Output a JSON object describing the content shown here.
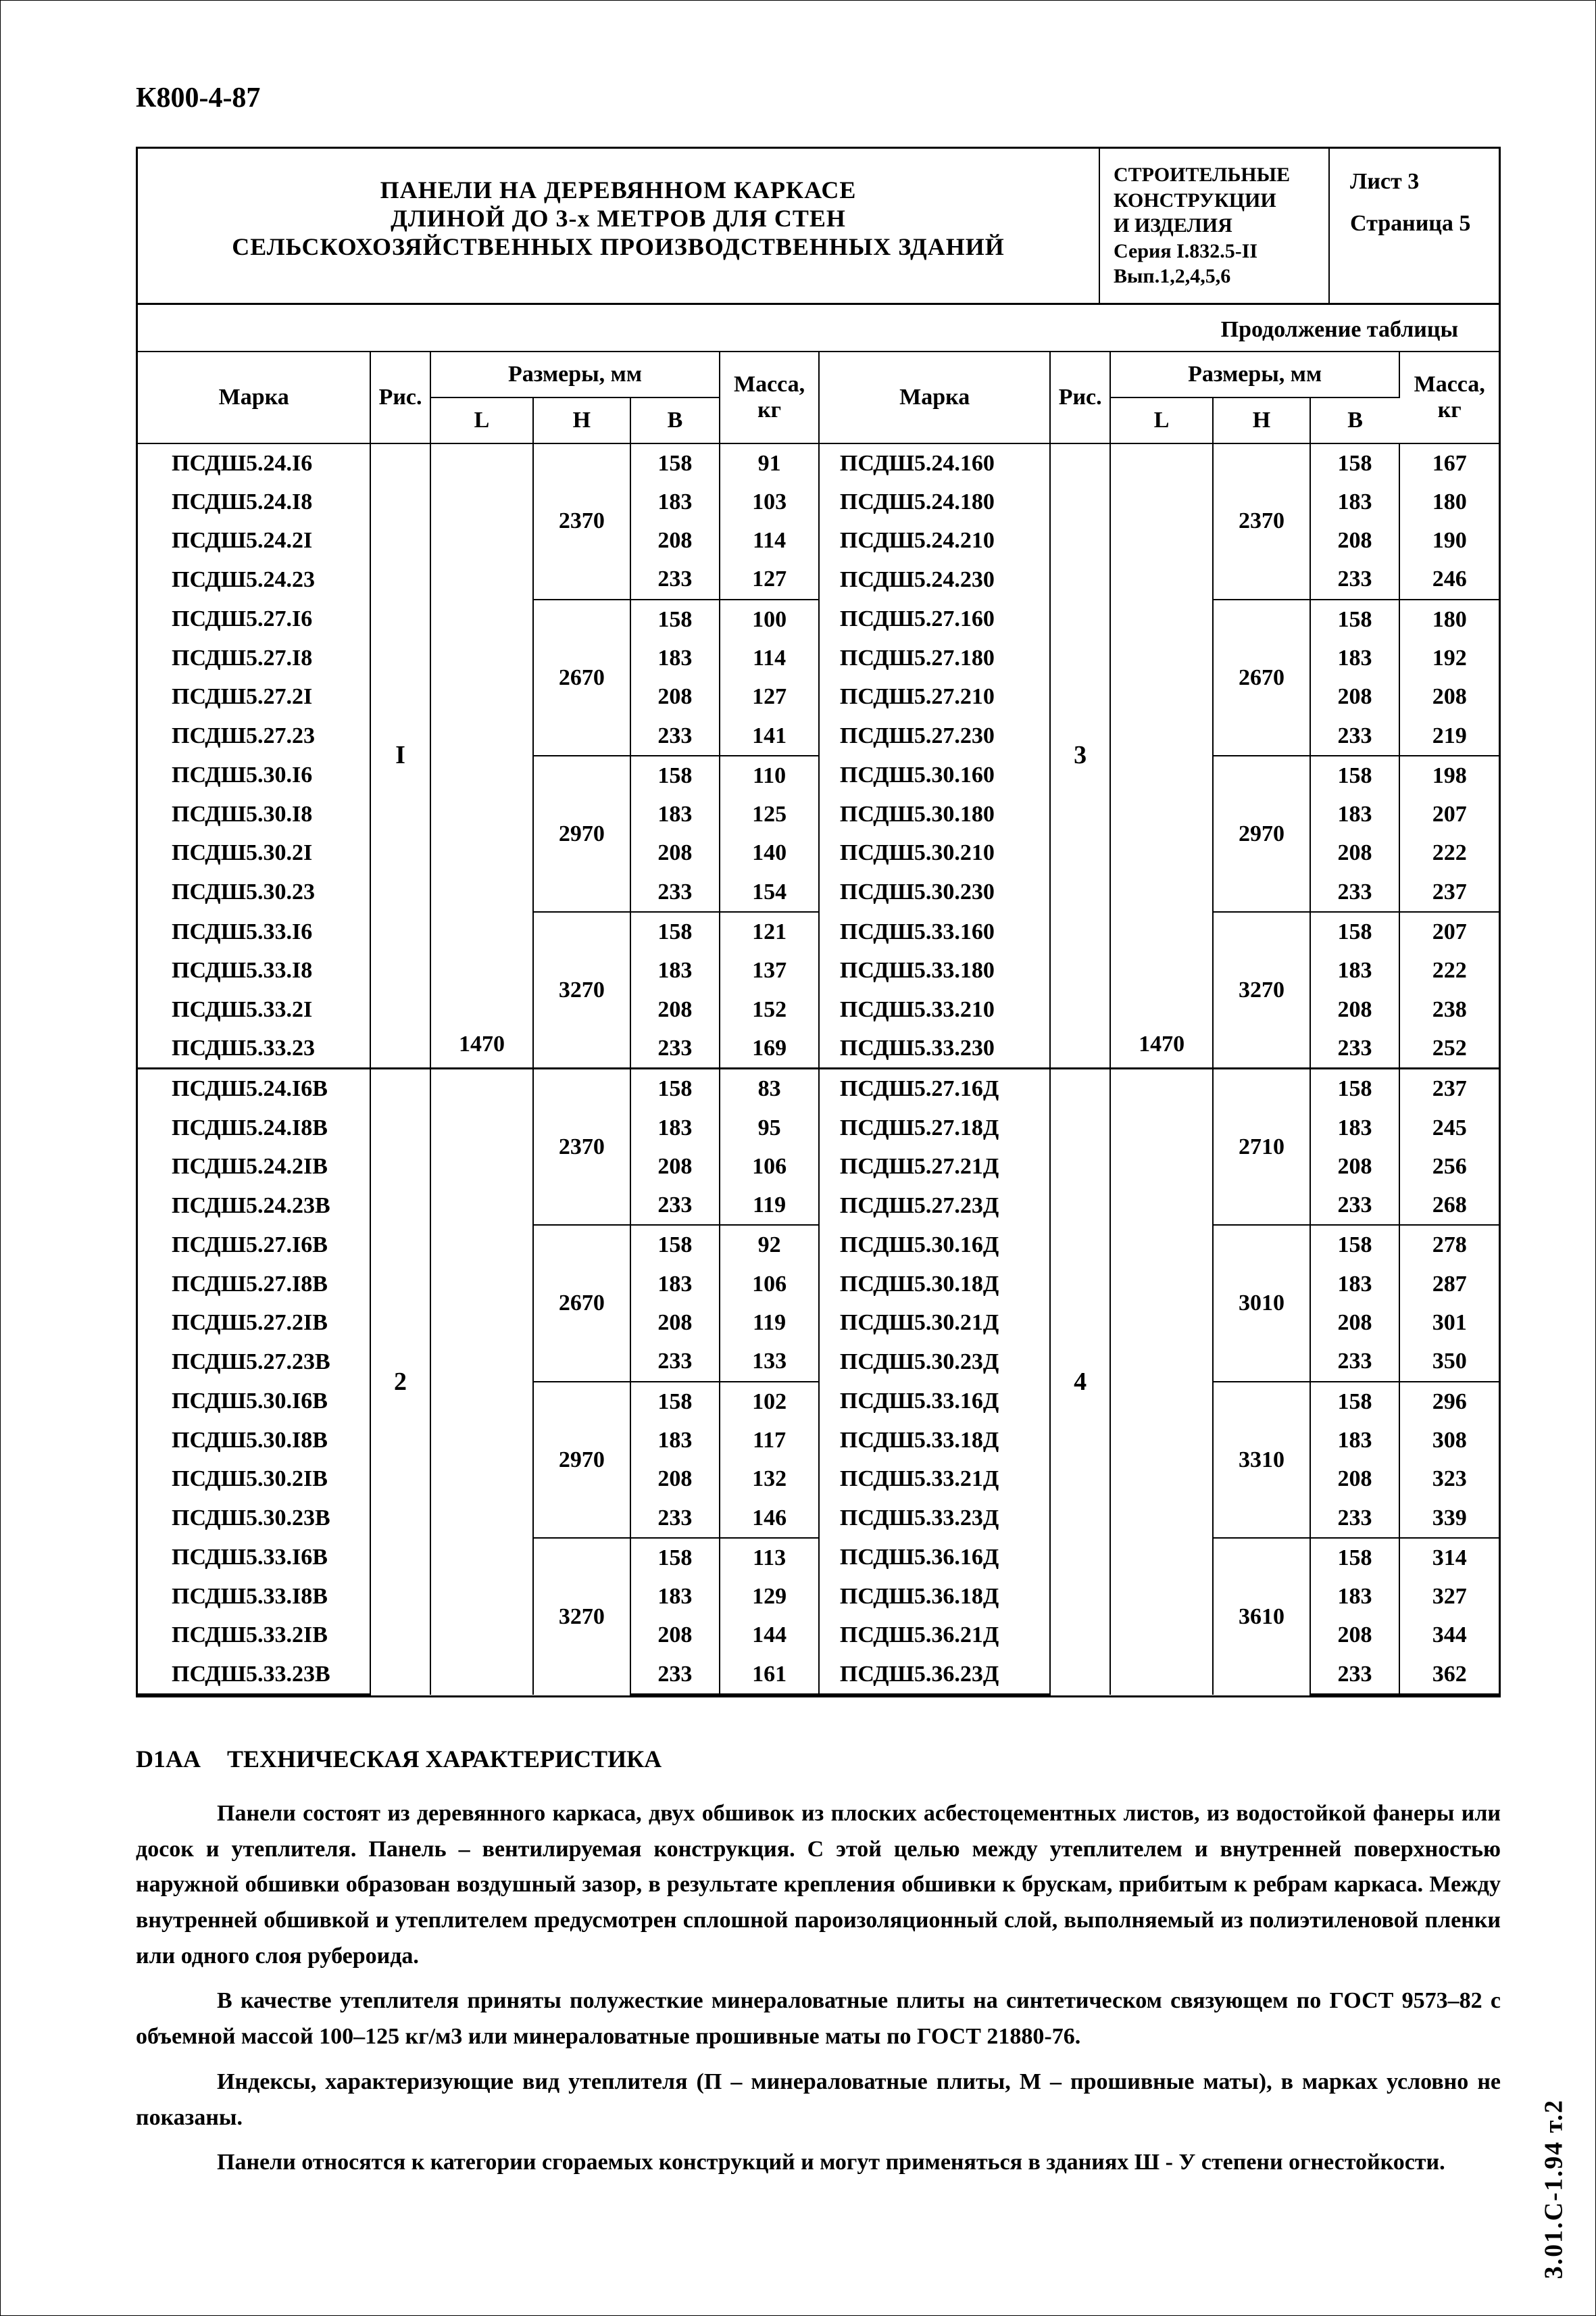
{
  "doc_code": "К800-4-87",
  "header": {
    "title_l1": "ПАНЕЛИ НА ДЕРЕВЯННОМ КАРКАСЕ",
    "title_l2": "ДЛИНОЙ ДО 3-х МЕТРОВ ДЛЯ СТЕН",
    "title_l3": "СЕЛЬСКОХОЗЯЙСТВЕННЫХ ПРОИЗВОДСТВЕННЫХ ЗДАНИЙ",
    "mid_l1": "СТРОИТЕЛЬНЫЕ",
    "mid_l2": "КОНСТРУКЦИИ",
    "mid_l3": "И ИЗДЕЛИЯ",
    "mid_l4": "Серия I.832.5-II",
    "mid_l5": "Вып.1,2,4,5,6",
    "sheet": "Лист 3",
    "page": "Страница 5"
  },
  "continuation": "Продолжение таблицы",
  "th": {
    "marka": "Марка",
    "ris": "Рис.",
    "dim": "Размеры, мм",
    "l": "L",
    "n": "Н",
    "b": "В",
    "mass": "Масса, кг"
  },
  "widths": {
    "marka": 350,
    "ris": 90,
    "l": 160,
    "n": 150,
    "b": 140,
    "mass": 150
  },
  "left": {
    "blocks": [
      {
        "ris": "I",
        "l": "1470",
        "groups": [
          {
            "n": "2370",
            "rows": [
              {
                "marka": "ПСДШ5.24.I6",
                "b": "158",
                "m": "91"
              },
              {
                "marka": "ПСДШ5.24.I8",
                "b": "183",
                "m": "103"
              },
              {
                "marka": "ПСДШ5.24.2I",
                "b": "208",
                "m": "114"
              },
              {
                "marka": "ПСДШ5.24.23",
                "b": "233",
                "m": "127"
              }
            ]
          },
          {
            "n": "2670",
            "rows": [
              {
                "marka": "ПСДШ5.27.I6",
                "b": "158",
                "m": "100"
              },
              {
                "marka": "ПСДШ5.27.I8",
                "b": "183",
                "m": "114"
              },
              {
                "marka": "ПСДШ5.27.2I",
                "b": "208",
                "m": "127"
              },
              {
                "marka": "ПСДШ5.27.23",
                "b": "233",
                "m": "141"
              }
            ]
          },
          {
            "n": "2970",
            "rows": [
              {
                "marka": "ПСДШ5.30.I6",
                "b": "158",
                "m": "110"
              },
              {
                "marka": "ПСДШ5.30.I8",
                "b": "183",
                "m": "125"
              },
              {
                "marka": "ПСДШ5.30.2I",
                "b": "208",
                "m": "140"
              },
              {
                "marka": "ПСДШ5.30.23",
                "b": "233",
                "m": "154"
              }
            ]
          },
          {
            "n": "3270",
            "rows": [
              {
                "marka": "ПСДШ5.33.I6",
                "b": "158",
                "m": "121"
              },
              {
                "marka": "ПСДШ5.33.I8",
                "b": "183",
                "m": "137"
              },
              {
                "marka": "ПСДШ5.33.2I",
                "b": "208",
                "m": "152"
              },
              {
                "marka": "ПСДШ5.33.23",
                "b": "233",
                "m": "169"
              }
            ]
          }
        ]
      },
      {
        "ris": "2",
        "l": "",
        "groups": [
          {
            "n": "2370",
            "rows": [
              {
                "marka": "ПСДШ5.24.I6В",
                "b": "158",
                "m": "83"
              },
              {
                "marka": "ПСДШ5.24.I8В",
                "b": "183",
                "m": "95"
              },
              {
                "marka": "ПСДШ5.24.2IВ",
                "b": "208",
                "m": "106"
              },
              {
                "marka": "ПСДШ5.24.23В",
                "b": "233",
                "m": "119"
              }
            ]
          },
          {
            "n": "2670",
            "rows": [
              {
                "marka": "ПСДШ5.27.I6В",
                "b": "158",
                "m": "92"
              },
              {
                "marka": "ПСДШ5.27.I8В",
                "b": "183",
                "m": "106"
              },
              {
                "marka": "ПСДШ5.27.2IВ",
                "b": "208",
                "m": "119"
              },
              {
                "marka": "ПСДШ5.27.23В",
                "b": "233",
                "m": "133"
              }
            ]
          },
          {
            "n": "2970",
            "rows": [
              {
                "marka": "ПСДШ5.30.I6В",
                "b": "158",
                "m": "102"
              },
              {
                "marka": "ПСДШ5.30.I8В",
                "b": "183",
                "m": "117"
              },
              {
                "marka": "ПСДШ5.30.2IВ",
                "b": "208",
                "m": "132"
              },
              {
                "marka": "ПСДШ5.30.23В",
                "b": "233",
                "m": "146"
              }
            ]
          },
          {
            "n": "3270",
            "rows": [
              {
                "marka": "ПСДШ5.33.I6В",
                "b": "158",
                "m": "113"
              },
              {
                "marka": "ПСДШ5.33.I8В",
                "b": "183",
                "m": "129"
              },
              {
                "marka": "ПСДШ5.33.2IВ",
                "b": "208",
                "m": "144"
              },
              {
                "marka": "ПСДШ5.33.23В",
                "b": "233",
                "m": "161"
              }
            ]
          }
        ]
      }
    ]
  },
  "right": {
    "blocks": [
      {
        "ris": "3",
        "l": "1470",
        "groups": [
          {
            "n": "2370",
            "rows": [
              {
                "marka": "ПСДШ5.24.160",
                "b": "158",
                "m": "167"
              },
              {
                "marka": "ПСДШ5.24.180",
                "b": "183",
                "m": "180"
              },
              {
                "marka": "ПСДШ5.24.210",
                "b": "208",
                "m": "190"
              },
              {
                "marka": "ПСДШ5.24.230",
                "b": "233",
                "m": "246"
              }
            ]
          },
          {
            "n": "2670",
            "rows": [
              {
                "marka": "ПСДШ5.27.160",
                "b": "158",
                "m": "180"
              },
              {
                "marka": "ПСДШ5.27.180",
                "b": "183",
                "m": "192"
              },
              {
                "marka": "ПСДШ5.27.210",
                "b": "208",
                "m": "208"
              },
              {
                "marka": "ПСДШ5.27.230",
                "b": "233",
                "m": "219"
              }
            ]
          },
          {
            "n": "2970",
            "rows": [
              {
                "marka": "ПСДШ5.30.160",
                "b": "158",
                "m": "198"
              },
              {
                "marka": "ПСДШ5.30.180",
                "b": "183",
                "m": "207"
              },
              {
                "marka": "ПСДШ5.30.210",
                "b": "208",
                "m": "222"
              },
              {
                "marka": "ПСДШ5.30.230",
                "b": "233",
                "m": "237"
              }
            ]
          },
          {
            "n": "3270",
            "rows": [
              {
                "marka": "ПСДШ5.33.160",
                "b": "158",
                "m": "207"
              },
              {
                "marka": "ПСДШ5.33.180",
                "b": "183",
                "m": "222"
              },
              {
                "marka": "ПСДШ5.33.210",
                "b": "208",
                "m": "238"
              },
              {
                "marka": "ПСДШ5.33.230",
                "b": "233",
                "m": "252"
              }
            ]
          }
        ]
      },
      {
        "ris": "4",
        "l": "",
        "groups": [
          {
            "n": "2710",
            "rows": [
              {
                "marka": "ПСДШ5.27.16Д",
                "b": "158",
                "m": "237"
              },
              {
                "marka": "ПСДШ5.27.18Д",
                "b": "183",
                "m": "245"
              },
              {
                "marka": "ПСДШ5.27.21Д",
                "b": "208",
                "m": "256"
              },
              {
                "marka": "ПСДШ5.27.23Д",
                "b": "233",
                "m": "268"
              }
            ]
          },
          {
            "n": "3010",
            "rows": [
              {
                "marka": "ПСДШ5.30.16Д",
                "b": "158",
                "m": "278"
              },
              {
                "marka": "ПСДШ5.30.18Д",
                "b": "183",
                "m": "287"
              },
              {
                "marka": "ПСДШ5.30.21Д",
                "b": "208",
                "m": "301"
              },
              {
                "marka": "ПСДШ5.30.23Д",
                "b": "233",
                "m": "350"
              }
            ]
          },
          {
            "n": "3310",
            "rows": [
              {
                "marka": "ПСДШ5.33.16Д",
                "b": "158",
                "m": "296"
              },
              {
                "marka": "ПСДШ5.33.18Д",
                "b": "183",
                "m": "308"
              },
              {
                "marka": "ПСДШ5.33.21Д",
                "b": "208",
                "m": "323"
              },
              {
                "marka": "ПСДШ5.33.23Д",
                "b": "233",
                "m": "339"
              }
            ]
          },
          {
            "n": "3610",
            "rows": [
              {
                "marka": "ПСДШ5.36.16Д",
                "b": "158",
                "m": "314"
              },
              {
                "marka": "ПСДШ5.36.18Д",
                "b": "183",
                "m": "327"
              },
              {
                "marka": "ПСДШ5.36.21Д",
                "b": "208",
                "m": "344"
              },
              {
                "marka": "ПСДШ5.36.23Д",
                "b": "233",
                "m": "362"
              }
            ]
          }
        ]
      }
    ]
  },
  "tech": {
    "code": "D1АА",
    "title": "ТЕХНИЧЕСКАЯ ХАРАКТЕРИСТИКА",
    "p1": "Панели состоят из деревянного каркаса, двух обшивок из плоских асбестоцементных листов, из водостойкой фанеры или досок и утеплителя. Панель – вентилируемая конструкция. С этой целью между утеплителем и внутренней поверхностью наружной обшивки образован воздушный зазор, в результате крепления обшивки к брускам, прибитым к ребрам каркаса. Между внутренней обшивкой и утеплителем предусмотрен сплошной пароизоляционный слой, выполняемый из полиэтиленовой пленки или одного слоя рубероида.",
    "p2": "В качестве утеплителя приняты полужесткие минераловатные плиты на синтетическом связующем по ГОСТ 9573–82 с объемной массой 100–125 кг/м3 или минераловатные прошивные маты по ГОСТ 21880-76.",
    "p3": "Индексы, характеризующие вид утеплителя (П – минераловатные плиты, М – прошивные маты), в марках условно не показаны.",
    "p4": "Панели относятся к категории сгораемых конструкций и могут применяться в зданиях Ш - У степени огнестойкости."
  },
  "side_code": "3.01.С-1.94 т.2"
}
